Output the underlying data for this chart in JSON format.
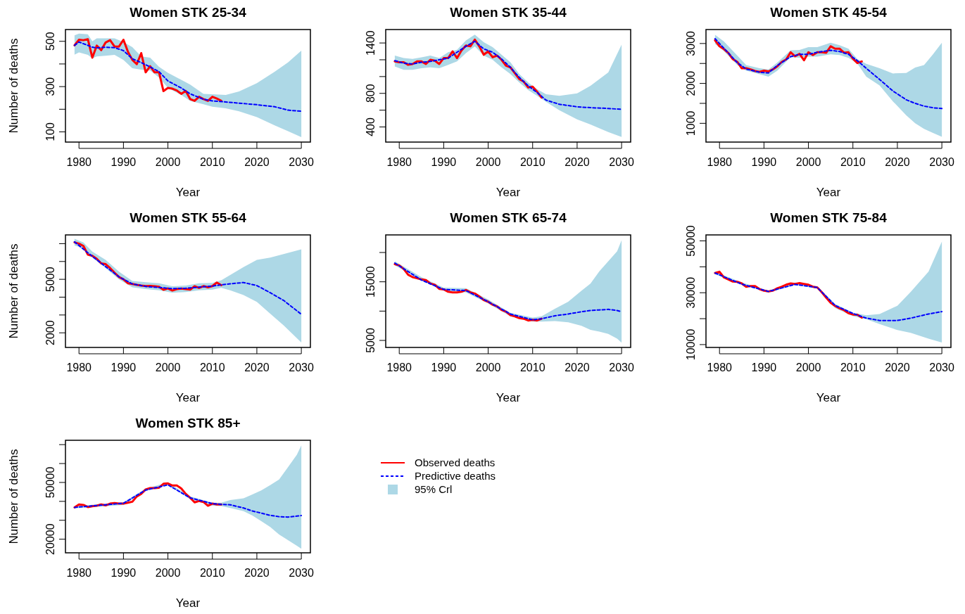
{
  "chart_data": [
    {
      "type": "line",
      "title": "Women STK  25-34",
      "xlabel": "Year",
      "ylabel": "Number of deaths",
      "xlim": [
        1976.96,
        2032.04
      ],
      "xticks": [
        1980,
        1990,
        2000,
        2010,
        2020,
        2030
      ],
      "ylim": [
        55,
        552
      ],
      "yticks": [
        100,
        {
          "value": 200,
          "label": null
        },
        300,
        {
          "value": 400,
          "label": null
        },
        500
      ],
      "legend": false,
      "series": [
        {
          "color": "#0000ff",
          "line_style": "dashed",
          "x": [
            1979,
            1980,
            1982,
            1983,
            1984,
            1986,
            1988,
            1990,
            1992,
            1994,
            1996,
            1998,
            2000,
            2003,
            2005,
            2008,
            2010,
            2013,
            2016,
            2020,
            2024,
            2027,
            2030
          ],
          "values": [
            482,
            497,
            482,
            474,
            471,
            474,
            472,
            459,
            423,
            406,
            387,
            366,
            325,
            294,
            268,
            244,
            237,
            232,
            227,
            220,
            211,
            196,
            191
          ],
          "lower": [
            441,
            451,
            440,
            425,
            433,
            436,
            440,
            418,
            381,
            375,
            371,
            340,
            294,
            263,
            237,
            222,
            211,
            204,
            191,
            165,
            129,
            103,
            77
          ],
          "upper": [
            526,
            534,
            531,
            500,
            513,
            513,
            513,
            497,
            474,
            433,
            428,
            387,
            361,
            330,
            309,
            268,
            266,
            263,
            279,
            315,
            366,
            407,
            459
          ]
        },
        {
          "color": "#ff0000",
          "line_style": "solid",
          "x": [
            1979,
            1980,
            1981,
            1982,
            1983,
            1984,
            1985,
            1986,
            1987,
            1988,
            1989,
            1990,
            1991,
            1992,
            1993,
            1994,
            1995,
            1996,
            1997,
            1998,
            1999,
            2000,
            2001,
            2002,
            2003,
            2004,
            2005,
            2006,
            2007,
            2008,
            2009,
            2010,
            2011,
            2012
          ],
          "values": [
            482,
            507,
            505,
            509,
            428,
            481,
            461,
            495,
            505,
            477,
            477,
            507,
            454,
            418,
            399,
            448,
            363,
            390,
            363,
            363,
            280,
            294,
            291,
            283,
            268,
            281,
            245,
            237,
            255,
            245,
            237,
            255,
            247,
            237
          ]
        }
      ]
    },
    {
      "type": "line",
      "title": "Women STK  35-44",
      "xlabel": "Year",
      "xlim": [
        1976.96,
        2032.04
      ],
      "xticks": [
        1980,
        1990,
        2000,
        2010,
        2020,
        2030
      ],
      "ylim": [
        220,
        1560
      ],
      "yticks": [
        400,
        {
          "value": 600,
          "label": null
        },
        800,
        {
          "value": 1000,
          "label": null
        },
        {
          "value": 1200,
          "label": null
        },
        1400
      ],
      "legend": false,
      "series": [
        {
          "color": "#0000ff",
          "line_style": "dashed",
          "x": [
            1979,
            1981,
            1983,
            1985,
            1987,
            1989,
            1991,
            1993,
            1995,
            1997,
            1999,
            2001,
            2003,
            2005,
            2007,
            2009,
            2011,
            2013,
            2016,
            2020,
            2023,
            2027,
            2030
          ],
          "values": [
            1190,
            1160,
            1150,
            1170,
            1180,
            1200,
            1220,
            1290,
            1360,
            1420,
            1330,
            1290,
            1210,
            1110,
            990,
            890,
            810,
            720,
            670,
            640,
            630,
            620,
            610
          ],
          "lower": [
            1120,
            1080,
            1080,
            1100,
            1110,
            1100,
            1140,
            1180,
            1280,
            1360,
            1250,
            1200,
            1110,
            1030,
            930,
            840,
            770,
            700,
            600,
            490,
            430,
            340,
            280
          ],
          "upper": [
            1250,
            1220,
            1210,
            1230,
            1250,
            1220,
            1290,
            1320,
            1430,
            1500,
            1410,
            1350,
            1260,
            1170,
            1030,
            930,
            850,
            790,
            770,
            800,
            890,
            1050,
            1380
          ]
        },
        {
          "color": "#ff0000",
          "line_style": "solid",
          "x": [
            1979,
            1980,
            1981,
            1982,
            1983,
            1984,
            1985,
            1986,
            1987,
            1988,
            1989,
            1990,
            1991,
            1992,
            1993,
            1994,
            1995,
            1996,
            1997,
            1998,
            1999,
            2000,
            2001,
            2002,
            2003,
            2004,
            2005,
            2006,
            2007,
            2008,
            2009,
            2010,
            2011,
            2012
          ],
          "values": [
            1180,
            1170,
            1170,
            1140,
            1150,
            1180,
            1180,
            1150,
            1200,
            1190,
            1150,
            1220,
            1220,
            1300,
            1220,
            1310,
            1370,
            1360,
            1440,
            1360,
            1260,
            1300,
            1230,
            1250,
            1200,
            1130,
            1110,
            1040,
            970,
            940,
            870,
            880,
            820,
            750
          ]
        }
      ]
    },
    {
      "type": "line",
      "title": "Women STK  45-54",
      "xlabel": "Year",
      "xlim": [
        1976.96,
        2032.04
      ],
      "xticks": [
        1980,
        1990,
        2000,
        2010,
        2020,
        2030
      ],
      "ylim": [
        530,
        3350
      ],
      "yticks": [
        1000,
        {
          "value": 1500,
          "label": null
        },
        2000,
        {
          "value": 2500,
          "label": null
        },
        3000
      ],
      "legend": false,
      "series": [
        {
          "color": "#0000ff",
          "line_style": "dashed",
          "x": [
            1979,
            1981,
            1984,
            1986,
            1989,
            1991,
            1993,
            1996,
            1998,
            2000,
            2002,
            2005,
            2007,
            2009,
            2011,
            2013,
            2016,
            2019,
            2022,
            2024,
            2026,
            2028,
            2030
          ],
          "values": [
            3120,
            2880,
            2520,
            2360,
            2280,
            2260,
            2450,
            2670,
            2730,
            2730,
            2780,
            2830,
            2800,
            2730,
            2570,
            2380,
            2100,
            1810,
            1590,
            1500,
            1430,
            1390,
            1370
          ],
          "lower": [
            2990,
            2810,
            2460,
            2320,
            2230,
            2170,
            2320,
            2660,
            2640,
            2670,
            2670,
            2730,
            2710,
            2640,
            2500,
            2170,
            1950,
            1550,
            1200,
            1000,
            860,
            760,
            660
          ],
          "upper": [
            3220,
            3050,
            2700,
            2460,
            2380,
            2350,
            2520,
            2830,
            2840,
            2910,
            2910,
            3020,
            2960,
            2870,
            2610,
            2490,
            2380,
            2250,
            2260,
            2400,
            2460,
            2730,
            3020
          ]
        },
        {
          "color": "#ff0000",
          "line_style": "solid",
          "x": [
            1979,
            1980,
            1981,
            1982,
            1983,
            1984,
            1985,
            1986,
            1987,
            1988,
            1989,
            1990,
            1991,
            1992,
            1993,
            1994,
            1995,
            1996,
            1997,
            1998,
            1999,
            2000,
            2001,
            2002,
            2003,
            2004,
            2005,
            2006,
            2007,
            2008,
            2009,
            2010,
            2011,
            2012
          ],
          "values": [
            3080,
            2930,
            2860,
            2760,
            2610,
            2540,
            2380,
            2380,
            2350,
            2310,
            2290,
            2320,
            2300,
            2350,
            2430,
            2540,
            2600,
            2780,
            2680,
            2740,
            2580,
            2780,
            2710,
            2780,
            2780,
            2770,
            2930,
            2870,
            2870,
            2770,
            2780,
            2620,
            2510,
            2550
          ]
        }
      ]
    },
    {
      "type": "line",
      "title": "Women STK  55-64",
      "xlabel": "Year",
      "ylabel": "Number of deaths",
      "xlim": [
        1976.96,
        2032.04
      ],
      "xticks": [
        1980,
        1990,
        2000,
        2010,
        2020,
        2030
      ],
      "ylim": [
        1180,
        7490
      ],
      "yticks": [
        2000,
        {
          "value": 3000,
          "label": null
        },
        {
          "value": 4000,
          "label": null
        },
        5000,
        {
          "value": 6000,
          "label": null
        },
        {
          "value": 7000,
          "label": null
        }
      ],
      "legend": false,
      "series": [
        {
          "color": "#0000ff",
          "line_style": "dashed",
          "x": [
            1979,
            1981,
            1983,
            1986,
            1989,
            1992,
            1995,
            1998,
            2001,
            2004,
            2007,
            2010,
            2012,
            2014,
            2017,
            2020,
            2023,
            2026,
            2030
          ],
          "values": [
            7100,
            6690,
            6290,
            5710,
            5140,
            4740,
            4600,
            4540,
            4480,
            4500,
            4560,
            4620,
            4690,
            4750,
            4820,
            4650,
            4250,
            3820,
            3040
          ],
          "lower": [
            6900,
            6740,
            6220,
            5630,
            5000,
            4550,
            4450,
            4380,
            4250,
            4290,
            4380,
            4420,
            4520,
            4380,
            4120,
            3730,
            3070,
            2420,
            1460
          ],
          "upper": [
            7270,
            7070,
            6550,
            6090,
            5430,
            4910,
            4840,
            4780,
            4610,
            4650,
            4780,
            4800,
            4950,
            5240,
            5690,
            6090,
            6220,
            6420,
            6680
          ]
        },
        {
          "color": "#ff0000",
          "line_style": "solid",
          "x": [
            1979,
            1980,
            1981,
            1982,
            1983,
            1984,
            1985,
            1986,
            1987,
            1988,
            1989,
            1990,
            1991,
            1992,
            1993,
            1994,
            1995,
            1996,
            1997,
            1998,
            1999,
            2000,
            2001,
            2002,
            2003,
            2004,
            2005,
            2006,
            2007,
            2008,
            2009,
            2010,
            2011,
            2012
          ],
          "values": [
            7070,
            7000,
            6870,
            6380,
            6320,
            6150,
            5890,
            5850,
            5630,
            5370,
            5130,
            5000,
            4780,
            4740,
            4690,
            4650,
            4620,
            4630,
            4610,
            4580,
            4410,
            4490,
            4370,
            4450,
            4480,
            4450,
            4420,
            4610,
            4520,
            4620,
            4550,
            4620,
            4820,
            4670
          ]
        }
      ]
    },
    {
      "type": "line",
      "title": "Women STK  65-74",
      "xlabel": "Year",
      "xlim": [
        1976.96,
        2032.04
      ],
      "xticks": [
        1980,
        1990,
        2000,
        2010,
        2020,
        2030
      ],
      "ylim": [
        3800,
        23000
      ],
      "yticks": [
        5000,
        {
          "value": 10000,
          "label": null
        },
        15000,
        {
          "value": 20000,
          "label": null
        }
      ],
      "legend": false,
      "series": [
        {
          "color": "#0000ff",
          "line_style": "dashed",
          "x": [
            1979,
            1985,
            1990,
            1995,
            2000,
            2005,
            2010,
            2012,
            2015,
            2018,
            2021,
            2023,
            2025,
            2027,
            2029,
            2030
          ],
          "values": [
            18200,
            15300,
            13700,
            13500,
            11600,
            9500,
            8500,
            8700,
            9200,
            9500,
            9900,
            10100,
            10200,
            10300,
            10100,
            9900
          ],
          "lower": [
            17800,
            15200,
            13500,
            13200,
            11300,
            9100,
            8200,
            8200,
            8300,
            8100,
            7500,
            6800,
            6500,
            6100,
            5300,
            4600
          ],
          "upper": [
            18500,
            15800,
            14000,
            13900,
            12000,
            9700,
            8900,
            9100,
            10400,
            11600,
            13500,
            14700,
            16800,
            18500,
            20200,
            22100
          ]
        },
        {
          "color": "#ff0000",
          "line_style": "solid",
          "x": [
            1979,
            1980,
            1981,
            1982,
            1983,
            1984,
            1985,
            1986,
            1987,
            1988,
            1989,
            1990,
            1991,
            1992,
            1993,
            1994,
            1995,
            1996,
            1997,
            1998,
            1999,
            2000,
            2001,
            2002,
            2003,
            2004,
            2005,
            2006,
            2007,
            2008,
            2009,
            2010,
            2011,
            2012
          ],
          "values": [
            18000,
            17800,
            17200,
            16200,
            15800,
            15600,
            15400,
            15300,
            14700,
            14500,
            13800,
            13700,
            13300,
            13200,
            13200,
            13300,
            13600,
            13200,
            13000,
            12500,
            11900,
            11600,
            11100,
            10800,
            10200,
            9900,
            9300,
            9100,
            8800,
            8700,
            8400,
            8500,
            8400,
            8700
          ]
        }
      ]
    },
    {
      "type": "line",
      "title": "Women STK  75-84",
      "xlabel": "Year",
      "xlim": [
        1976.96,
        2032.04
      ],
      "xticks": [
        1980,
        1990,
        2000,
        2010,
        2020,
        2030
      ],
      "ylim": [
        8900,
        52300
      ],
      "yticks": [
        10000,
        {
          "value": 20000,
          "label": null
        },
        30000,
        {
          "value": 40000,
          "label": null
        },
        50000
      ],
      "legend": false,
      "series": [
        {
          "color": "#0000ff",
          "line_style": "dashed",
          "x": [
            1979,
            1985,
            1991,
            1997,
            2002,
            2006,
            2010,
            2013,
            2016,
            2020,
            2023,
            2027,
            2030
          ],
          "values": [
            37600,
            33300,
            30500,
            33200,
            32000,
            25100,
            22000,
            20200,
            19300,
            19300,
            20200,
            21800,
            22700
          ],
          "lower": [
            37100,
            33100,
            30000,
            33000,
            31600,
            24100,
            21000,
            19800,
            17900,
            15600,
            14500,
            12300,
            10800
          ],
          "upper": [
            38100,
            34000,
            30900,
            33900,
            32500,
            25700,
            22300,
            21300,
            21800,
            25000,
            30300,
            38100,
            49700
          ]
        },
        {
          "color": "#ff0000",
          "line_style": "solid",
          "x": [
            1979,
            1980,
            1981,
            1982,
            1983,
            1984,
            1985,
            1986,
            1987,
            1988,
            1989,
            1990,
            1991,
            1992,
            1993,
            1994,
            1995,
            1996,
            1997,
            1998,
            1999,
            2000,
            2001,
            2002,
            2003,
            2004,
            2005,
            2006,
            2007,
            2008,
            2009,
            2010,
            2011,
            2012
          ],
          "values": [
            37600,
            38100,
            35900,
            35100,
            34300,
            34200,
            33600,
            32300,
            32600,
            32600,
            31400,
            30800,
            30500,
            30800,
            31700,
            32300,
            33100,
            33600,
            33400,
            33700,
            33400,
            33100,
            32300,
            32000,
            30200,
            28100,
            26100,
            24900,
            24000,
            23300,
            22100,
            21600,
            21500,
            20400
          ]
        }
      ]
    },
    {
      "type": "line",
      "title": "Women STK  85+",
      "xlabel": "Year",
      "ylabel": "Number of deaths",
      "xlim": [
        1976.96,
        2032.04
      ],
      "xticks": [
        1980,
        1990,
        2000,
        2010,
        2020,
        2030
      ],
      "ylim": [
        12800,
        72300
      ],
      "yticks": [
        20000,
        {
          "value": 30000,
          "label": null
        },
        {
          "value": 40000,
          "label": null
        },
        50000,
        {
          "value": 60000,
          "label": null
        },
        {
          "value": 70000,
          "label": null
        }
      ],
      "legend": "right",
      "annotations": [
        "95% Crl"
      ],
      "series": [
        {
          "name": "Predictive deaths",
          "color": "#0000ff",
          "line_style": "dashed",
          "x": [
            1979,
            1990,
            1995,
            2000,
            2005,
            2010,
            2012,
            2014,
            2017,
            2019,
            2021,
            2023,
            2025,
            2027,
            2029,
            2030
          ],
          "values": [
            36800,
            39000,
            46000,
            48700,
            41900,
            38800,
            38400,
            38200,
            36500,
            34900,
            33800,
            32600,
            31900,
            31700,
            32200,
            32500
          ],
          "lower": [
            36300,
            38100,
            45400,
            48900,
            41100,
            37700,
            37500,
            36500,
            34800,
            32500,
            29500,
            26500,
            22500,
            19500,
            16500,
            14900
          ],
          "upper": [
            37400,
            39500,
            46800,
            50000,
            42600,
            39300,
            39300,
            40700,
            41600,
            43700,
            45800,
            48600,
            51600,
            58100,
            64700,
            69600
          ]
        },
        {
          "name": "Observed deaths",
          "color": "#ff0000",
          "line_style": "solid",
          "x": [
            1979,
            1980,
            1981,
            1982,
            1983,
            1984,
            1985,
            1986,
            1987,
            1988,
            1989,
            1990,
            1991,
            1992,
            1993,
            1994,
            1995,
            1996,
            1997,
            1998,
            1999,
            2000,
            2001,
            2002,
            2003,
            2004,
            2005,
            2006,
            2007,
            2008,
            2009,
            2010,
            2011,
            2012
          ],
          "values": [
            36800,
            38400,
            38100,
            37000,
            37400,
            37700,
            38400,
            37900,
            38800,
            39100,
            38800,
            38800,
            39300,
            39800,
            42600,
            44000,
            46300,
            47000,
            47000,
            47200,
            49300,
            49500,
            48400,
            48400,
            46800,
            44000,
            41900,
            39500,
            40200,
            39700,
            37700,
            38800,
            38400,
            38400
          ]
        }
      ]
    }
  ]
}
